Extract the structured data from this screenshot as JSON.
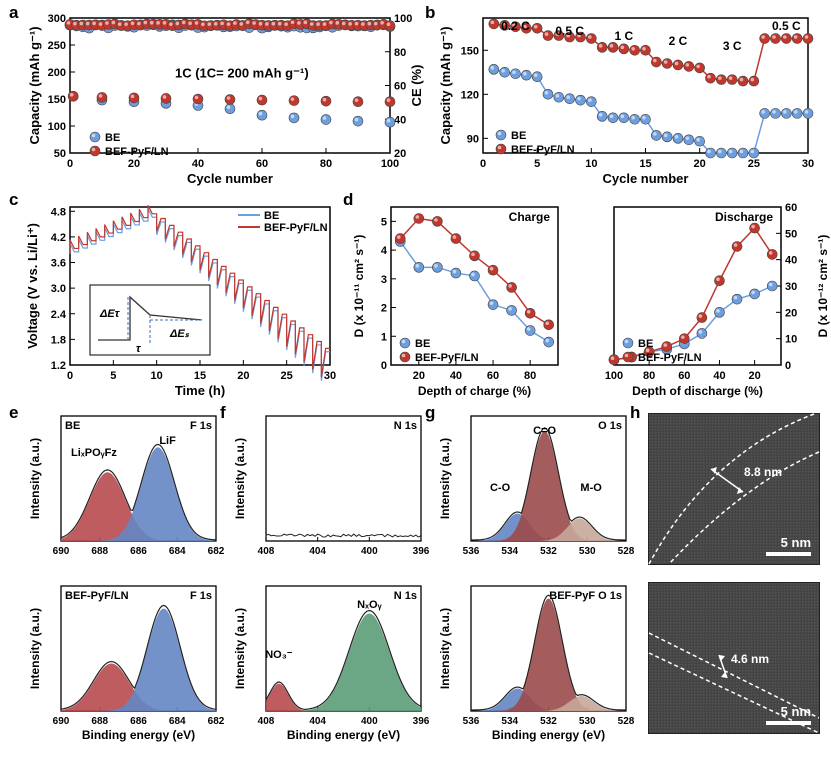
{
  "colors": {
    "be": "#6d9fe0",
    "bef": "#c1372d",
    "grid": "#ffffff",
    "axis": "#000000",
    "text": "#000000",
    "peak_red": "#b84a4f",
    "peak_blue": "#6486c3",
    "peak_green": "#5b9c78",
    "peak_maroon": "#9b4a4a",
    "peak_sand": "#c8a79a"
  },
  "a": {
    "xlabel": "Cycle number",
    "y1": "Capacity (mAh g⁻¹)",
    "y2": "CE (%)",
    "condition": "1C (1C= 200 mAh g⁻¹)",
    "cycles": [
      1,
      10,
      20,
      30,
      40,
      50,
      60,
      70,
      80,
      90,
      100
    ],
    "be": [
      155,
      148,
      145,
      142,
      138,
      132,
      120,
      115,
      112,
      109,
      107
    ],
    "bef": [
      155,
      153,
      152,
      151,
      150,
      149,
      148,
      147,
      146,
      145,
      145
    ],
    "be_ce": [
      91,
      94,
      95,
      95,
      95,
      95,
      94,
      94,
      95,
      95,
      95
    ],
    "bef_ce": [
      92,
      96,
      96,
      96,
      96,
      96,
      96,
      96,
      96,
      96,
      96
    ],
    "xticks": [
      0,
      20,
      40,
      60,
      80,
      100
    ],
    "y1ticks": [
      50,
      100,
      150,
      200,
      250,
      300
    ],
    "y2ticks": [
      20,
      40,
      60,
      80,
      100
    ]
  },
  "b": {
    "xlabel": "Cycle number",
    "y1": "Capacity (mAh g⁻¹)",
    "rates": [
      "0.2 C",
      "0.5 C",
      "1 C",
      "2 C",
      "3 C",
      "0.5 C"
    ],
    "be": [
      137,
      135,
      134,
      133,
      132,
      120,
      118,
      117,
      116,
      115,
      105,
      104,
      104,
      103,
      103,
      92,
      91,
      90,
      89,
      88,
      80,
      80,
      80,
      80,
      80,
      107,
      107,
      107,
      107,
      107
    ],
    "bef": [
      168,
      167,
      166,
      165,
      165,
      160,
      160,
      159,
      159,
      158,
      152,
      152,
      151,
      150,
      150,
      142,
      141,
      140,
      139,
      138,
      131,
      130,
      130,
      129,
      129,
      158,
      158,
      158,
      158,
      158
    ],
    "xticks": [
      0,
      5,
      10,
      15,
      20,
      25,
      30
    ],
    "yticks": [
      90,
      120,
      150
    ]
  },
  "c": {
    "xlabel": "Time (h)",
    "ylabel": "Voltage (V vs. Li/Li⁺)",
    "xticks": [
      0,
      5,
      10,
      15,
      20,
      25,
      30
    ],
    "yticks": [
      1.2,
      1.8,
      2.4,
      3.0,
      3.6,
      4.2,
      4.8
    ],
    "inset": {
      "dEt": "ΔEτ",
      "dEs": "ΔEₛ",
      "tau": "τ"
    }
  },
  "d": {
    "charge": {
      "xlabel": "Depth of charge (%)",
      "ylabel": "D (x 10⁻¹¹ cm² s⁻¹)",
      "pct": [
        10,
        20,
        30,
        40,
        50,
        60,
        70,
        80,
        90
      ],
      "be": [
        4.3,
        3.4,
        3.4,
        3.2,
        3.1,
        2.1,
        1.9,
        1.2,
        0.8
      ],
      "bef": [
        4.4,
        5.1,
        5.0,
        4.4,
        3.8,
        3.3,
        2.7,
        1.8,
        1.4
      ],
      "yticks": [
        0,
        1,
        2,
        3,
        4,
        5
      ],
      "xticks": [
        20,
        40,
        60,
        80
      ]
    },
    "discharge": {
      "xlabel": "Depth of discharge (%)",
      "ylabel": "D (x 10⁻¹² cm² s⁻¹)",
      "pct": [
        100,
        90,
        80,
        70,
        60,
        50,
        40,
        30,
        20,
        10
      ],
      "be": [
        2,
        3,
        5,
        6,
        8,
        12,
        20,
        25,
        27,
        30
      ],
      "bef": [
        2,
        3,
        5,
        7,
        10,
        18,
        32,
        45,
        52,
        42
      ],
      "yticks": [
        0,
        10,
        20,
        30,
        40,
        50,
        60
      ],
      "xticks": [
        100,
        80,
        60,
        40,
        20
      ]
    }
  },
  "xps": {
    "f1s": {
      "title": "F 1s",
      "ticks": [
        690,
        688,
        686,
        684,
        682
      ],
      "peaks": [
        "LiₓPOᵧFz",
        "LiF"
      ]
    },
    "n1s": {
      "title": "N 1s",
      "ticks": [
        408,
        404,
        400,
        396
      ],
      "peaks": [
        "NO₃⁻",
        "NₓOᵧ"
      ]
    },
    "o1s": {
      "title": "O 1s",
      "ticks": [
        536,
        534,
        532,
        530,
        528
      ],
      "peaks": [
        "C-O",
        "C=O",
        "M-O",
        "BEF-PyF O 1s"
      ]
    },
    "xlabel": "Binding energy (eV)",
    "ylabel": "Intensity (a.u.)",
    "be_label": "BE",
    "bef_label": "BEF-PyF/LN"
  },
  "tem": {
    "t1": "8.8 nm",
    "t2": "4.6 nm",
    "scale": "5 nm"
  },
  "labels": [
    "a",
    "b",
    "c",
    "d",
    "e",
    "f",
    "g",
    "h"
  ]
}
